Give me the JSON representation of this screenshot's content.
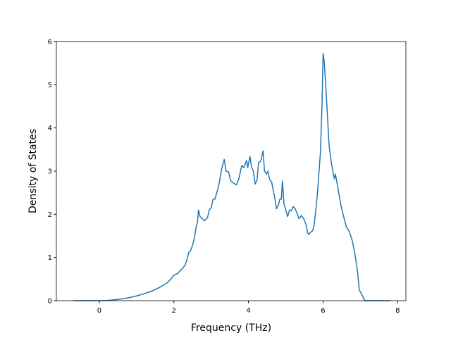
{
  "chart_data": {
    "type": "line",
    "xlabel": "Frequency (THz)",
    "ylabel": "Density of States",
    "xlim": [
      -1.15,
      8.22
    ],
    "ylim": [
      0,
      6
    ],
    "xticks": [
      0,
      2,
      4,
      6,
      8
    ],
    "yticks": [
      0,
      1,
      2,
      3,
      4,
      5,
      6
    ],
    "series": [
      {
        "color": "#1f77b4",
        "x": [
          -0.7,
          -0.5,
          0,
          0.2,
          0.4,
          0.6,
          0.8,
          1.0,
          1.2,
          1.4,
          1.6,
          1.8,
          1.9,
          2.0,
          2.1,
          2.2,
          2.3,
          2.35,
          2.4,
          2.45,
          2.5,
          2.55,
          2.6,
          2.63,
          2.66,
          2.7,
          2.76,
          2.82,
          2.9,
          2.95,
          3.0,
          3.05,
          3.1,
          3.2,
          3.28,
          3.35,
          3.4,
          3.47,
          3.52,
          3.6,
          3.68,
          3.75,
          3.82,
          3.88,
          3.95,
          3.98,
          4.04,
          4.08,
          4.13,
          4.18,
          4.23,
          4.27,
          4.33,
          4.39,
          4.43,
          4.48,
          4.52,
          4.57,
          4.62,
          4.7,
          4.75,
          4.8,
          4.84,
          4.88,
          4.91,
          4.95,
          5.0,
          5.05,
          5.1,
          5.15,
          5.2,
          5.25,
          5.3,
          5.35,
          5.42,
          5.48,
          5.55,
          5.58,
          5.62,
          5.66,
          5.72,
          5.76,
          5.8,
          5.85,
          5.9,
          5.93,
          5.97,
          6.0,
          6.03,
          6.07,
          6.1,
          6.16,
          6.22,
          6.3,
          6.33,
          6.4,
          6.48,
          6.55,
          6.62,
          6.7,
          6.78,
          6.85,
          6.92,
          6.97,
          7.05,
          7.12,
          7.5,
          7.8
        ],
        "values": [
          0,
          0,
          0,
          0.005,
          0.02,
          0.04,
          0.07,
          0.11,
          0.16,
          0.22,
          0.3,
          0.4,
          0.48,
          0.59,
          0.63,
          0.72,
          0.82,
          0.95,
          1.12,
          1.16,
          1.28,
          1.45,
          1.72,
          1.8,
          2.1,
          1.95,
          1.9,
          1.85,
          1.92,
          2.1,
          2.15,
          2.35,
          2.35,
          2.65,
          3.05,
          3.27,
          3.0,
          2.98,
          2.78,
          2.72,
          2.68,
          2.85,
          3.13,
          3.08,
          3.25,
          3.08,
          3.34,
          3.1,
          3.0,
          2.7,
          2.8,
          3.2,
          3.23,
          3.47,
          3.0,
          2.93,
          3.0,
          2.8,
          2.75,
          2.4,
          2.13,
          2.2,
          2.35,
          2.35,
          2.77,
          2.25,
          2.1,
          1.95,
          2.1,
          2.08,
          2.18,
          2.13,
          2.03,
          1.9,
          1.97,
          1.9,
          1.75,
          1.58,
          1.53,
          1.58,
          1.62,
          1.75,
          2.05,
          2.5,
          3.1,
          3.45,
          4.5,
          5.72,
          5.55,
          5.0,
          4.55,
          3.6,
          3.2,
          2.82,
          2.93,
          2.6,
          2.2,
          1.95,
          1.72,
          1.6,
          1.4,
          1.1,
          0.7,
          0.25,
          0.12,
          0,
          0,
          0
        ]
      }
    ]
  }
}
